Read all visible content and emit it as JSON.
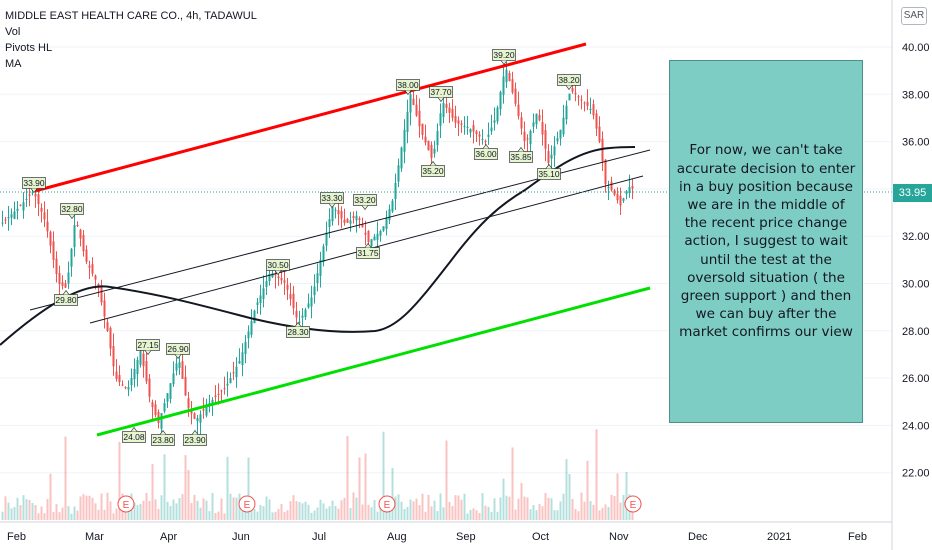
{
  "header": {
    "symbol_title": "MIDDLE EAST HEALTH CARE CO., 4h, TADAWUL",
    "indicators": [
      "Vol",
      "Pivots HL",
      "MA"
    ],
    "currency": "SAR"
  },
  "note": {
    "lines": [
      "For now, we can't take",
      "accurate decision to enter",
      "in a buy position because",
      "we are in the middle of",
      "the recent price change",
      "action, I suggest to wait",
      "until the test at the",
      "oversold situation ( the",
      "green support ) and then",
      "we can buy after the",
      "market confirms our view"
    ],
    "background": "#7ecdc4"
  },
  "last_price": "33.95",
  "colors": {
    "up": "#26a69a",
    "down": "#ef5350",
    "resistance": "#ff0000",
    "support": "#00e000",
    "channel": "#131722",
    "moving_average": "#131722",
    "pivot_label_bg": "#e6f5d0"
  },
  "chart_data": {
    "type": "candlestick",
    "y_axis": {
      "min": 20.5,
      "max": 41.2,
      "ticks": [
        "40.00",
        "38.00",
        "36.00",
        "34.00",
        "32.00",
        "30.00",
        "28.00",
        "26.00",
        "24.00",
        "22.00"
      ]
    },
    "x_axis": {
      "ticks": [
        "Feb",
        "Mar",
        "Apr",
        "Jun",
        "Jul",
        "Aug",
        "Sep",
        "Oct",
        "Nov",
        "Dec",
        "2021",
        "Feb"
      ]
    },
    "pivot_labels": [
      "33.90",
      "32.80",
      "29.80",
      "27.15",
      "26.90",
      "24.08",
      "23.80",
      "23.90",
      "30.50",
      "28.30",
      "33.30",
      "33.20",
      "31.75",
      "38.00",
      "37.70",
      "35.20",
      "39.20",
      "36.00",
      "35.85",
      "38.20",
      "35.10"
    ],
    "earnings_markers": [
      "E",
      "E",
      "E",
      "E"
    ],
    "close_path": [
      [
        0,
        32.5
      ],
      [
        18,
        33.2
      ],
      [
        33,
        33.9
      ],
      [
        45,
        32.6
      ],
      [
        58,
        30.0
      ],
      [
        66,
        29.8
      ],
      [
        75,
        32.8
      ],
      [
        85,
        31.0
      ],
      [
        97,
        30.0
      ],
      [
        107,
        28.0
      ],
      [
        115,
        26.0
      ],
      [
        127,
        25.5
      ],
      [
        140,
        27.15
      ],
      [
        150,
        25.0
      ],
      [
        158,
        24.1
      ],
      [
        168,
        25.5
      ],
      [
        178,
        26.9
      ],
      [
        187,
        24.8
      ],
      [
        195,
        24.2
      ],
      [
        210,
        25.0
      ],
      [
        225,
        25.6
      ],
      [
        240,
        26.8
      ],
      [
        255,
        29.0
      ],
      [
        270,
        30.5
      ],
      [
        285,
        30.0
      ],
      [
        298,
        28.3
      ],
      [
        312,
        29.5
      ],
      [
        320,
        31.0
      ],
      [
        332,
        33.3
      ],
      [
        345,
        32.5
      ],
      [
        357,
        32.9
      ],
      [
        368,
        31.75
      ],
      [
        382,
        32.3
      ],
      [
        392,
        33.5
      ],
      [
        400,
        35.5
      ],
      [
        410,
        38.0
      ],
      [
        420,
        36.5
      ],
      [
        432,
        35.2
      ],
      [
        442,
        37.7
      ],
      [
        455,
        36.8
      ],
      [
        468,
        36.6
      ],
      [
        485,
        36.0
      ],
      [
        495,
        37.0
      ],
      [
        505,
        39.2
      ],
      [
        515,
        37.6
      ],
      [
        525,
        35.85
      ],
      [
        537,
        37.3
      ],
      [
        548,
        35.1
      ],
      [
        560,
        36.5
      ],
      [
        570,
        38.2
      ],
      [
        580,
        37.8
      ],
      [
        592,
        37.3
      ],
      [
        600,
        35.8
      ],
      [
        605,
        34.2
      ],
      [
        612,
        33.9
      ],
      [
        620,
        33.3
      ],
      [
        628,
        34.1
      ],
      [
        635,
        33.95
      ]
    ]
  }
}
